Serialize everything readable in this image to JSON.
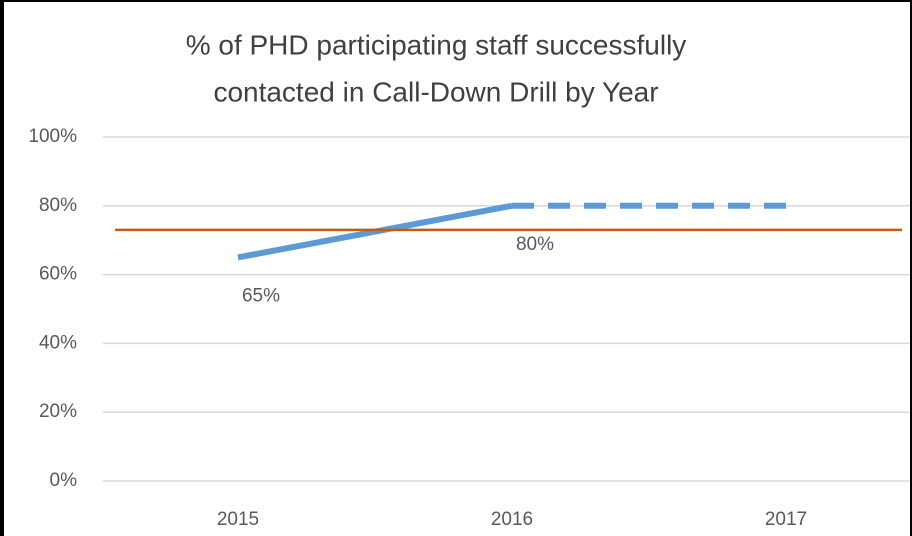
{
  "chart_data": {
    "type": "line",
    "title": [
      "% of PHD participating staff successfully",
      "contacted in Call-Down Drill by Year"
    ],
    "categories": [
      "2015",
      "2016",
      "2017"
    ],
    "series": [
      {
        "color": "#5b9bd5",
        "values": [
          65,
          80,
          null
        ],
        "value_labels": [
          "65%",
          "80%",
          null
        ]
      },
      {
        "color": "#5b9bd5",
        "dashed": true,
        "values": [
          null,
          80,
          80
        ]
      }
    ],
    "reference_line": {
      "value": 73,
      "color": "#c55a11"
    },
    "ylim": [
      0,
      100
    ],
    "yticks": [
      {
        "value": 0,
        "label": "0%"
      },
      {
        "value": 20,
        "label": "20%"
      },
      {
        "value": 40,
        "label": "40%"
      },
      {
        "value": 60,
        "label": "60%"
      },
      {
        "value": 80,
        "label": "80%"
      },
      {
        "value": 100,
        "label": "100%"
      }
    ],
    "grid": true
  }
}
